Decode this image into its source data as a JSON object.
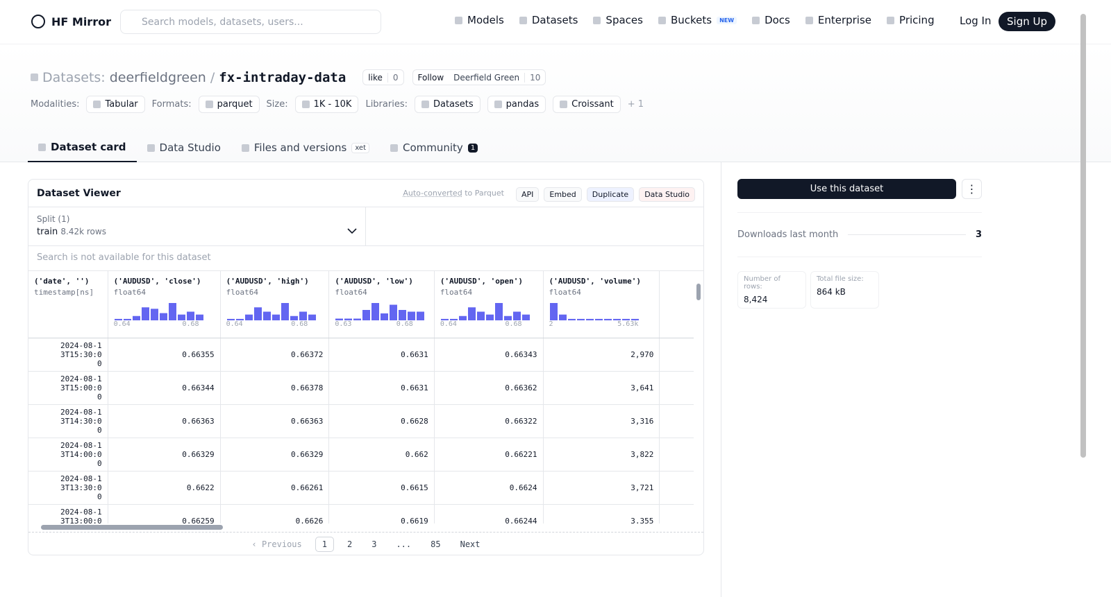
{
  "navbar": {
    "brand": "HF Mirror",
    "search_placeholder": "Search models, datasets, users...",
    "links": [
      "Models",
      "Datasets",
      "Spaces",
      "Buckets",
      "Docs",
      "Enterprise",
      "Pricing"
    ],
    "buckets_badge": "NEW",
    "login": "Log In",
    "signup": "Sign Up"
  },
  "header": {
    "prefix": "Datasets:",
    "owner": "deerfieldgreen",
    "separator": "/",
    "name": "fx-intraday-data",
    "like": "like",
    "likes": "0",
    "follow": "Follow",
    "org": "Deerfield Green",
    "followers": "10",
    "tags": [
      {
        "label": "Modalities:",
        "items": [
          "Tabular"
        ]
      },
      {
        "label": "Formats:",
        "items": [
          "parquet"
        ]
      },
      {
        "label": "Size:",
        "items": [
          "1K - 10K"
        ]
      },
      {
        "label": "Libraries:",
        "items": [
          "Datasets",
          "pandas",
          "Croissant"
        ]
      }
    ],
    "more": "+ 1"
  },
  "tabs": [
    {
      "label": "Dataset card"
    },
    {
      "label": "Data Studio"
    },
    {
      "label": "Files and versions",
      "badge": "xet"
    },
    {
      "label": "Community",
      "badge": "1"
    }
  ],
  "viewer": {
    "title": "Dataset Viewer",
    "auto_converted": "Auto-converted",
    "to_parquet": "to Parquet",
    "buttons": [
      "API",
      "Embed",
      "Duplicate",
      "Data Studio"
    ],
    "split_label": "Split (1)",
    "split": "train",
    "split_rows": "8.42k rows",
    "search_note": "Search is not available for this dataset",
    "columns": [
      {
        "name": "('date', '')",
        "dtype": "timestamp[ns]"
      },
      {
        "name": "('AUDUSD', 'close')",
        "dtype": "float64",
        "hist": [
          1,
          1,
          3,
          9,
          8,
          5,
          12,
          4,
          6,
          4
        ],
        "min": "0.64",
        "max": "0.68"
      },
      {
        "name": "('AUDUSD', 'high')",
        "dtype": "float64",
        "hist": [
          1,
          1,
          4,
          9,
          6,
          4,
          12,
          3,
          6,
          4
        ],
        "min": "0.64",
        "max": "0.68"
      },
      {
        "name": "('AUDUSD', 'low')",
        "dtype": "float64",
        "hist": [
          1,
          1,
          1,
          6,
          10,
          4,
          9,
          6,
          5,
          5
        ],
        "min": "0.63",
        "max": "0.68"
      },
      {
        "name": "('AUDUSD', 'open')",
        "dtype": "float64",
        "hist": [
          1,
          1,
          3,
          9,
          6,
          4,
          12,
          3,
          6,
          4
        ],
        "min": "0.64",
        "max": "0.68"
      },
      {
        "name": "('AUDUSD', 'volume')",
        "dtype": "float64",
        "hist": [
          12,
          4,
          1,
          1,
          1,
          1,
          1,
          1,
          1,
          1
        ],
        "min": "2",
        "max": "5.63k"
      }
    ],
    "rows": [
      [
        "2024-08-13T15:30:00",
        "0.66355",
        "0.66372",
        "0.6631",
        "0.66343",
        "2,970"
      ],
      [
        "2024-08-13T15:00:00",
        "0.66344",
        "0.66378",
        "0.6631",
        "0.66362",
        "3,641"
      ],
      [
        "2024-08-13T14:30:00",
        "0.66363",
        "0.66363",
        "0.6628",
        "0.66322",
        "3,316"
      ],
      [
        "2024-08-13T14:00:00",
        "0.66329",
        "0.66329",
        "0.662",
        "0.66221",
        "3,822"
      ],
      [
        "2024-08-13T13:30:00",
        "0.6622",
        "0.66261",
        "0.6615",
        "0.6624",
        "3,721"
      ],
      [
        "2024-08-13T13:00:00",
        "0.66259",
        "0.6626",
        "0.6619",
        "0.66244",
        "3,355"
      ]
    ],
    "pagination": {
      "previous": "Previous",
      "pages": [
        "1",
        "2",
        "3",
        "...",
        "85"
      ],
      "next": "Next"
    }
  },
  "sidebar": {
    "use_button": "Use this dataset",
    "downloads_label": "Downloads last month",
    "downloads": "3",
    "stats": [
      {
        "label": "Number of rows:",
        "value": "8,424"
      },
      {
        "label": "Total file size:",
        "value": "864 kB"
      }
    ]
  }
}
